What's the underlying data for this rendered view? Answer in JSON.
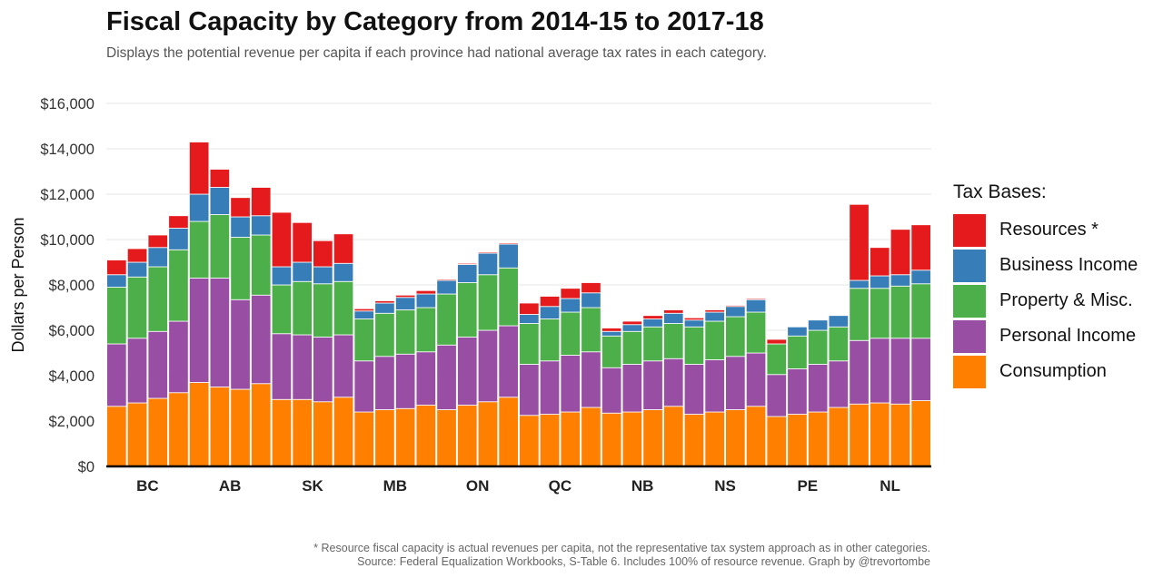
{
  "chart_data": {
    "type": "bar",
    "stacked": true,
    "title": "Fiscal Capacity by Category from 2014-15 to 2017-18",
    "subtitle": "Displays the potential revenue per capita if each province had national average tax rates in each category.",
    "xlabel": "",
    "ylabel": "Dollars per Person",
    "ylim": [
      0,
      16000
    ],
    "yticks": [
      0,
      2000,
      4000,
      6000,
      8000,
      10000,
      12000,
      14000,
      16000
    ],
    "ytick_labels": [
      "$0",
      "$2,000",
      "$4,000",
      "$6,000",
      "$8,000",
      "$10,000",
      "$12,000",
      "$14,000",
      "$16,000"
    ],
    "grid": "horizontal",
    "legend_title": "Tax Bases:",
    "legend_position": "right",
    "categories": [
      "BC",
      "AB",
      "SK",
      "MB",
      "ON",
      "QC",
      "NB",
      "NS",
      "PE",
      "NL"
    ],
    "bars_per_category": 4,
    "series": [
      {
        "name": "Consumption",
        "color": "#ff7f00",
        "values": [
          [
            2650,
            2800,
            3000,
            3250
          ],
          [
            3700,
            3500,
            3400,
            3650
          ],
          [
            2950,
            2950,
            2850,
            3050
          ],
          [
            2400,
            2500,
            2550,
            2700
          ],
          [
            2500,
            2700,
            2850,
            3050
          ],
          [
            2250,
            2300,
            2400,
            2600
          ],
          [
            2350,
            2400,
            2500,
            2650
          ],
          [
            2300,
            2400,
            2500,
            2650
          ],
          [
            2200,
            2300,
            2400,
            2600
          ],
          [
            2750,
            2800,
            2750,
            2900
          ]
        ]
      },
      {
        "name": "Personal Income",
        "color": "#984ea3",
        "values": [
          [
            2750,
            2850,
            2950,
            3150
          ],
          [
            4600,
            4800,
            3950,
            3900
          ],
          [
            2900,
            2850,
            2850,
            2750
          ],
          [
            2250,
            2350,
            2400,
            2350
          ],
          [
            2850,
            3000,
            3150,
            3150
          ],
          [
            2250,
            2350,
            2500,
            2450
          ],
          [
            2000,
            2100,
            2150,
            2100
          ],
          [
            2200,
            2300,
            2350,
            2350
          ],
          [
            1850,
            2000,
            2100,
            2050
          ],
          [
            2800,
            2850,
            2900,
            2750
          ]
        ]
      },
      {
        "name": "Property & Misc.",
        "color": "#4daf4a",
        "values": [
          [
            2500,
            2700,
            2850,
            3150
          ],
          [
            2500,
            2800,
            2750,
            2650
          ],
          [
            2150,
            2350,
            2350,
            2350
          ],
          [
            1850,
            1900,
            1950,
            1950
          ],
          [
            2250,
            2400,
            2450,
            2550
          ],
          [
            1800,
            1850,
            1900,
            1950
          ],
          [
            1400,
            1450,
            1500,
            1550
          ],
          [
            1650,
            1700,
            1750,
            1800
          ],
          [
            1350,
            1450,
            1500,
            1500
          ],
          [
            2300,
            2200,
            2300,
            2400
          ]
        ]
      },
      {
        "name": "Business Income",
        "color": "#377eb8",
        "values": [
          [
            550,
            650,
            850,
            950
          ],
          [
            1200,
            1200,
            900,
            850
          ],
          [
            800,
            850,
            750,
            800
          ],
          [
            350,
            450,
            550,
            600
          ],
          [
            600,
            800,
            950,
            1050
          ],
          [
            400,
            550,
            600,
            650
          ],
          [
            200,
            300,
            350,
            450
          ],
          [
            300,
            400,
            450,
            550
          ],
          [
            0,
            400,
            450,
            500
          ],
          [
            350,
            550,
            500,
            600
          ]
        ]
      },
      {
        "name": "Resources *",
        "color": "#e41a1c",
        "values": [
          [
            650,
            600,
            550,
            550
          ],
          [
            2300,
            800,
            850,
            1250
          ],
          [
            2400,
            1750,
            1150,
            1300
          ],
          [
            100,
            100,
            100,
            150
          ],
          [
            50,
            50,
            50,
            50
          ],
          [
            500,
            450,
            450,
            450
          ],
          [
            150,
            150,
            150,
            150
          ],
          [
            100,
            100,
            50,
            50
          ],
          [
            200,
            0,
            0,
            0
          ],
          [
            3350,
            1250,
            2000,
            2000
          ]
        ]
      }
    ],
    "legend_order": [
      "Resources *",
      "Business Income",
      "Property & Misc.",
      "Personal Income",
      "Consumption"
    ],
    "footnote": [
      "* Resource fiscal capacity is actual revenues per capita, not the representative tax system approach as in other categories.",
      "Source: Federal Equalization Workbooks, S-Table 6. Includes 100% of resource revenue. Graph by @trevortombe"
    ]
  }
}
